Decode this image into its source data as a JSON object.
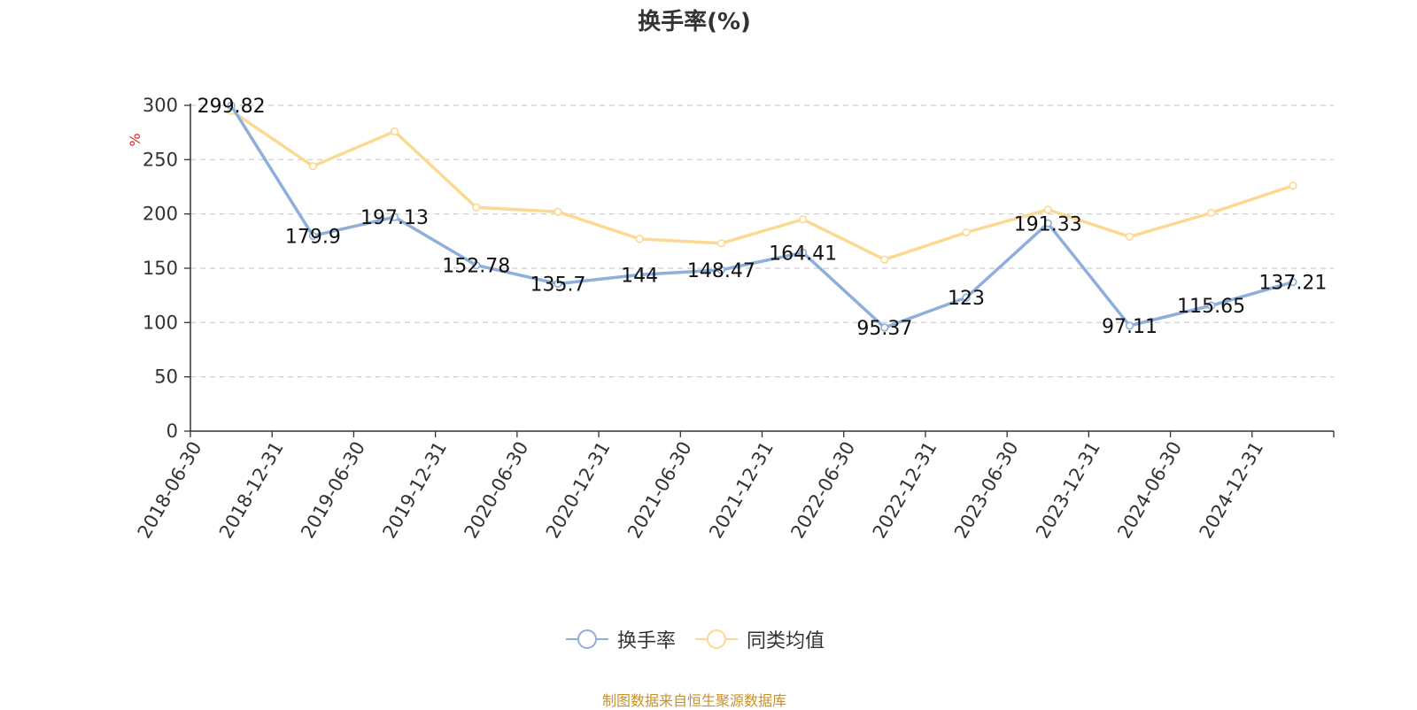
{
  "chart_data": {
    "type": "line",
    "title": "换手率(%)",
    "ylabel": "%",
    "xlabel": "",
    "ylim": [
      0,
      300
    ],
    "yticks": [
      0,
      50,
      100,
      150,
      200,
      250,
      300
    ],
    "grid": true,
    "legend_position": "bottom-center",
    "categories": [
      "2018-06-30",
      "2018-12-31",
      "2019-06-30",
      "2019-12-31",
      "2020-06-30",
      "2020-12-31",
      "2021-06-30",
      "2021-12-31",
      "2022-06-30",
      "2022-12-31",
      "2023-06-30",
      "2023-12-31",
      "2024-06-30",
      "2024-12-31"
    ],
    "series": [
      {
        "name": "换手率",
        "color": "#8eaedb",
        "values": [
          299.82,
          179.9,
          197.13,
          152.78,
          135.7,
          144,
          148.47,
          164.41,
          95.37,
          123,
          191.33,
          97.11,
          115.65,
          137.21
        ],
        "labels": [
          "299.82",
          "179.9",
          "197.13",
          "152.78",
          "135.7",
          "144",
          "148.47",
          "164.41",
          "95.37",
          "123",
          "191.33",
          "97.11",
          "115.65",
          "137.21"
        ]
      },
      {
        "name": "同类均值",
        "color": "#fcd993",
        "values": [
          295,
          244,
          276,
          206,
          202,
          177,
          173,
          195,
          158,
          183,
          204,
          179,
          201,
          226
        ]
      }
    ]
  },
  "footer": {
    "source": "制图数据来自恒生聚源数据库"
  }
}
